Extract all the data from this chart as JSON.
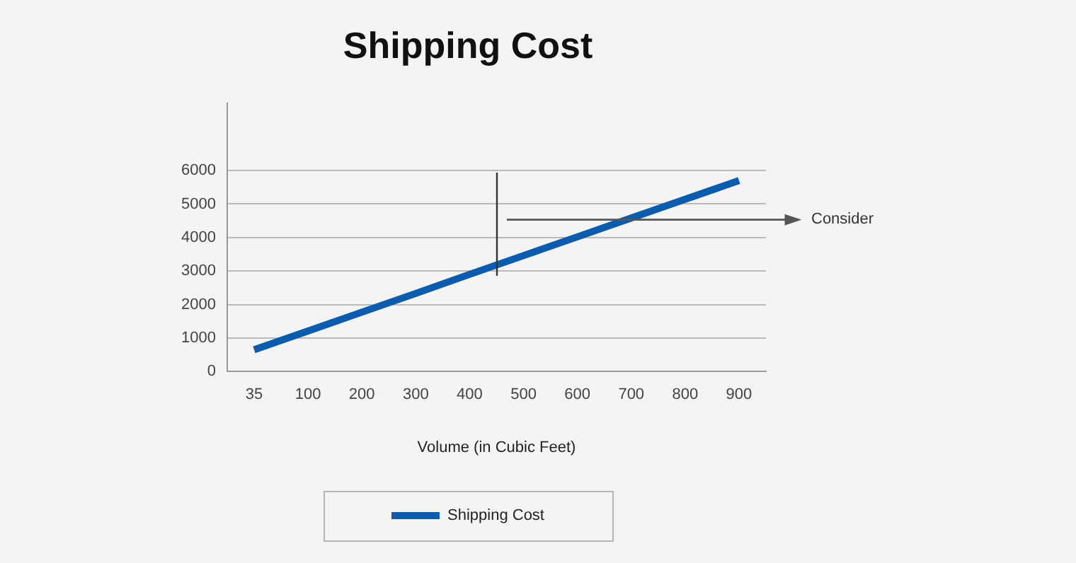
{
  "chart_data": {
    "type": "line",
    "title": "Shipping Cost",
    "xlabel": "Volume (in Cubic Feet)",
    "categories": [
      "35",
      "100",
      "200",
      "300",
      "400",
      "500",
      "600",
      "700",
      "800",
      "900"
    ],
    "series": [
      {
        "name": "Shipping Cost",
        "color": "#0b5cad",
        "values": [
          650,
          1210,
          1770,
          2330,
          2900,
          3460,
          4020,
          4580,
          5140,
          5700
        ]
      }
    ],
    "ylim": [
      0,
      8000
    ],
    "yticks": [
      0,
      1000,
      2000,
      3000,
      4000,
      5000,
      6000
    ],
    "grid": "y",
    "legend": "bottom",
    "marker": "none",
    "line_style": "solid",
    "annotations": [
      "Consider"
    ]
  }
}
